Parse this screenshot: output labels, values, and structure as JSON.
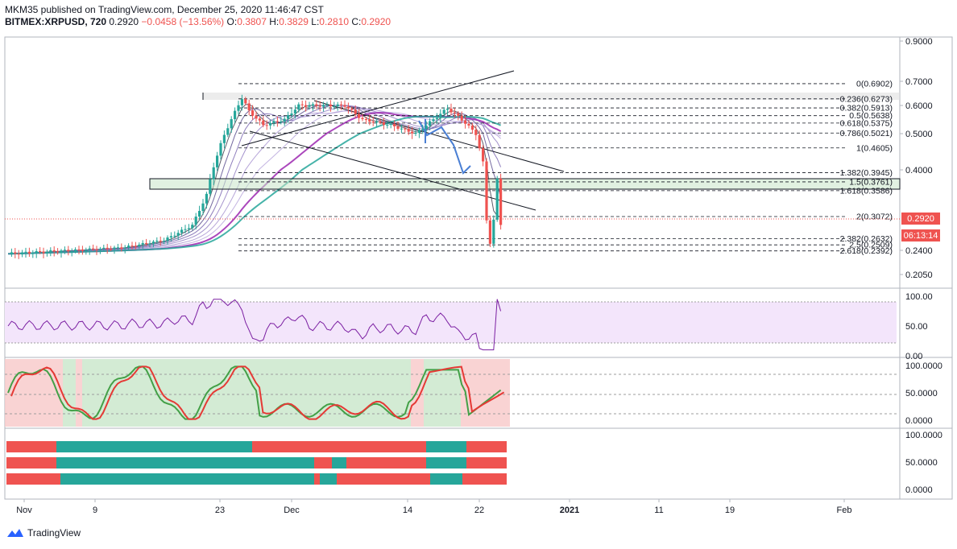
{
  "header": {
    "line1": "MKM35 published on TradingView.com, December 25, 2020 11:46:47 CST",
    "symbol": "BITMEX:XRPUSD, 720",
    "price": "0.2920",
    "change": "−0.0458 (−13.56%)",
    "o_label": "O:",
    "o": "0.3807",
    "h_label": "H:",
    "h": "0.3829",
    "l_label": "L:",
    "l": "0.2810",
    "c_label": "C:",
    "c": "0.2920"
  },
  "price_badge": "0.2920",
  "timer_badge": "06:13:14",
  "branding": "TradingView",
  "colors": {
    "up": "#26a69a",
    "down": "#ef5350",
    "rsi": "#7b1fa2",
    "bg_rsi": "#f3e5fb"
  },
  "chart_data": [
    {
      "type": "candlestick",
      "symbol": "BITMEX:XRPUSD",
      "interval": "720",
      "y_ticks": [
        "0.9000",
        "0.7000",
        "0.6000",
        "0.5000",
        "0.4000",
        "0.2400",
        "0.2050"
      ],
      "x_ticks": [
        "Nov",
        "9",
        "23",
        "Dec",
        "14",
        "22",
        "2021",
        "11",
        "19",
        "Feb"
      ],
      "fibonacci": [
        {
          "ratio": "0",
          "price": "0.6902"
        },
        {
          "ratio": "0.236",
          "price": "0.6273"
        },
        {
          "ratio": "0.382",
          "price": "0.5913"
        },
        {
          "ratio": "0.5",
          "price": "0.5638"
        },
        {
          "ratio": "0.618",
          "price": "0.5375"
        },
        {
          "ratio": "0.786",
          "price": "0.5021"
        },
        {
          "ratio": "1",
          "price": "0.4605"
        },
        {
          "ratio": "1.382",
          "price": "0.3945"
        },
        {
          "ratio": "1.5",
          "price": "0.3761"
        },
        {
          "ratio": "1.618",
          "price": "0.3586"
        },
        {
          "ratio": "2",
          "price": "0.3072"
        },
        {
          "ratio": "2.382",
          "price": "0.2632"
        },
        {
          "ratio": "2.5",
          "price": "0.2509"
        },
        {
          "ratio": "2.618",
          "price": "0.2392"
        }
      ]
    },
    {
      "type": "line",
      "y_ticks": [
        "100.00",
        "50.00",
        "0.00"
      ]
    },
    {
      "type": "line",
      "y_ticks": [
        "100.0000",
        "50.0000",
        "0.0000"
      ]
    },
    {
      "type": "bar",
      "y_ticks": [
        "100.0000",
        "50.0000",
        "0.0000"
      ]
    }
  ]
}
